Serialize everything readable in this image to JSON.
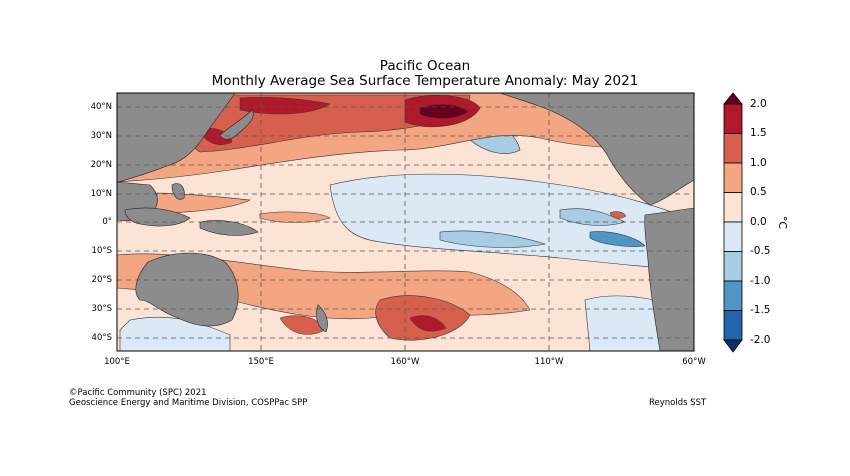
{
  "title": {
    "line1": "Pacific Ocean",
    "line2": "Monthly Average Sea Surface Temperature Anomaly: May 2021"
  },
  "map": {
    "lat_ticks": [
      "40°N",
      "30°N",
      "20°N",
      "10°N",
      "0°",
      "10°S",
      "20°S",
      "30°S",
      "40°S"
    ],
    "lon_ticks": [
      "100°E",
      "150°E",
      "160°W",
      "110°W",
      "60°W"
    ],
    "land_color": "#8c8c8c",
    "grid": "dashed"
  },
  "colorbar": {
    "unit": "°C",
    "ticks": [
      "2.0",
      "1.5",
      "1.0",
      "0.5",
      "0.0",
      "-0.5",
      "-1.0",
      "-1.5",
      "-2.0"
    ],
    "colors": [
      "#67001f",
      "#b2182b",
      "#d6604d",
      "#f4a582",
      "#fbe3d6",
      "#dbe9f6",
      "#a6cde3",
      "#4f95c6",
      "#2166ac",
      "#08306b"
    ]
  },
  "footer": {
    "credit_line1": "©Pacific Community (SPC) 2021",
    "credit_line2": "Geoscience Energy and Maritime Division, COSPPac SPP",
    "source": "Reynolds SST"
  }
}
